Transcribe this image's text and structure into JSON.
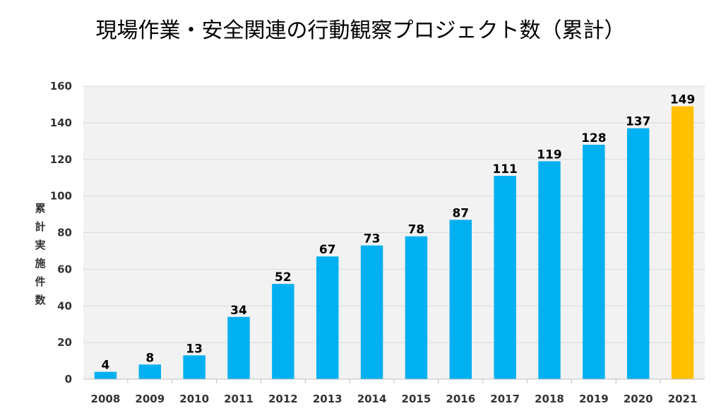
{
  "chart_data": {
    "type": "bar",
    "title": "現場作業・安全関連の行動観察プロジェクト数（累計）",
    "ylabel": "累計実施件数",
    "xlabel": "",
    "categories": [
      "2008",
      "2009",
      "2010",
      "2011",
      "2012",
      "2013",
      "2014",
      "2015",
      "2016",
      "2017",
      "2018",
      "2019",
      "2020",
      "2021"
    ],
    "values": [
      4,
      8,
      13,
      34,
      52,
      67,
      73,
      78,
      87,
      111,
      119,
      128,
      137,
      149
    ],
    "ylim": [
      0,
      160
    ],
    "yticks": [
      0,
      20,
      40,
      60,
      80,
      100,
      120,
      140,
      160
    ],
    "grid": true,
    "colors": {
      "bar": "#00B0F0",
      "highlight_bar": "#FFC000",
      "plot_background": "#F2F2F2",
      "gridline": "#D9D9D9"
    },
    "highlight_category": "2021",
    "data_labels": true
  }
}
